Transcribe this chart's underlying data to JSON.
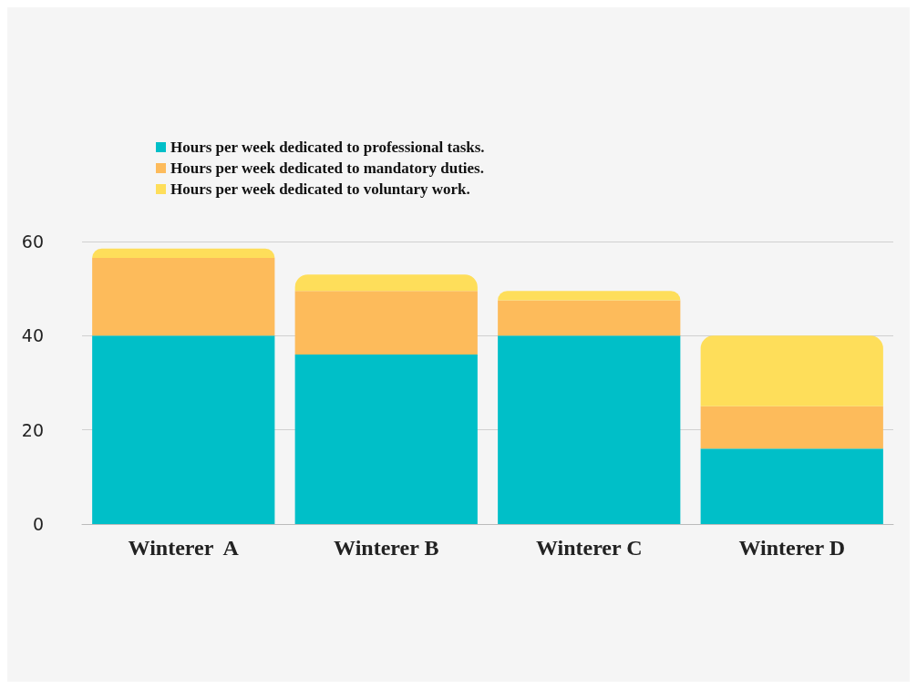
{
  "chart_data": {
    "type": "bar",
    "stacked": true,
    "categories": [
      "Winterer  A",
      "Winterer B",
      "Winterer C",
      "Winterer D"
    ],
    "series": [
      {
        "name": "Hours per week dedicated to professional tasks.",
        "color": "#00bfc8",
        "values": [
          40,
          36,
          40,
          16
        ]
      },
      {
        "name": "Hours per week dedicated to mandatory duties.",
        "color": "#fdbb5b",
        "values": [
          16.5,
          13.5,
          7.5,
          9
        ]
      },
      {
        "name": "Hours per week dedicated to voluntary work.",
        "color": "#fede5a",
        "values": [
          2,
          3.5,
          2,
          15
        ]
      }
    ],
    "ylim": [
      0,
      60
    ],
    "yticks": [
      0,
      20,
      40,
      60
    ],
    "grid": "y",
    "legend": "top left"
  }
}
